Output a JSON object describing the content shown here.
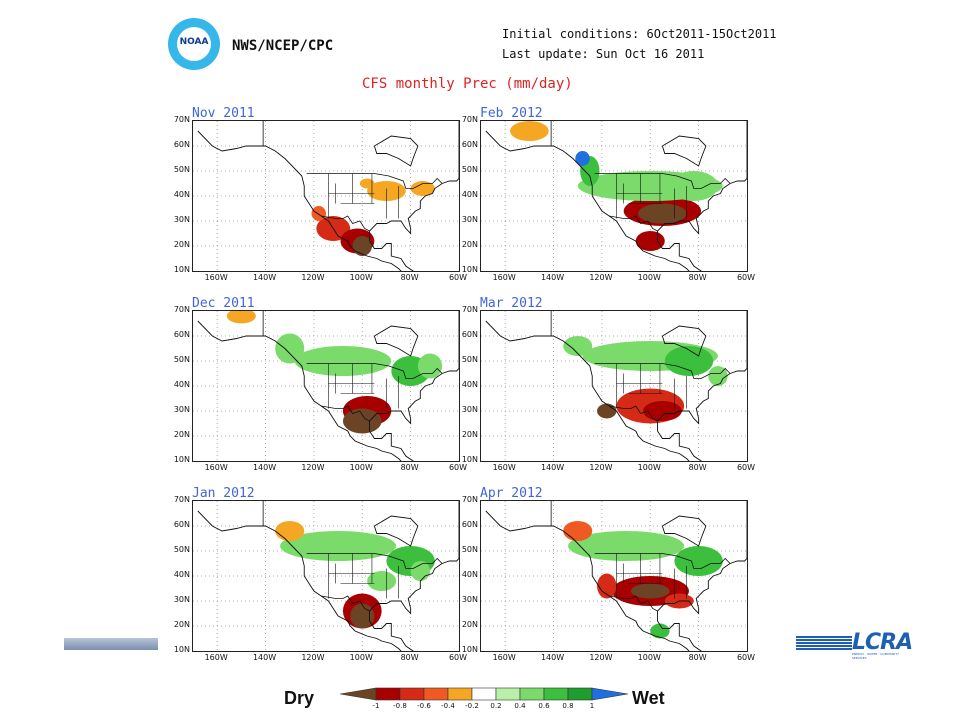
{
  "header": {
    "logo_text": "NOAA",
    "agency": "NWS/NCEP/CPC",
    "initial_conditions": "Initial conditions: 6Oct2011-15Oct2011",
    "last_update": "Last update: Sun Oct 16 2011",
    "title": "CFS monthly Prec (mm/day)"
  },
  "panels": [
    {
      "label": "Nov 2011"
    },
    {
      "label": "Feb 2012"
    },
    {
      "label": "Dec 2011"
    },
    {
      "label": "Mar 2012"
    },
    {
      "label": "Jan 2012"
    },
    {
      "label": "Apr 2012"
    }
  ],
  "axes": {
    "lat_labels": [
      "70N",
      "60N",
      "50N",
      "40N",
      "30N",
      "20N",
      "10N"
    ],
    "lon_labels": [
      "160W",
      "140W",
      "120W",
      "100W",
      "80W",
      "60W"
    ]
  },
  "legend": {
    "dry_label": "Dry",
    "wet_label": "Wet",
    "levels": [
      "-1",
      "-0.8",
      "-0.6",
      "-0.4",
      "-0.2",
      "0.2",
      "0.4",
      "0.6",
      "0.8",
      "1"
    ],
    "colors": [
      "#6b4426",
      "#a80000",
      "#d42a16",
      "#f05a22",
      "#f5a623",
      "#ffffff",
      "#b8f0a8",
      "#7bdb6a",
      "#3cbf3c",
      "#1f9d2d",
      "#1e6fe0"
    ]
  },
  "footer": {
    "logo_text": "LCRA",
    "logo_subtext": "ENERGY · WATER · COMMUNITY SERVICES"
  }
}
